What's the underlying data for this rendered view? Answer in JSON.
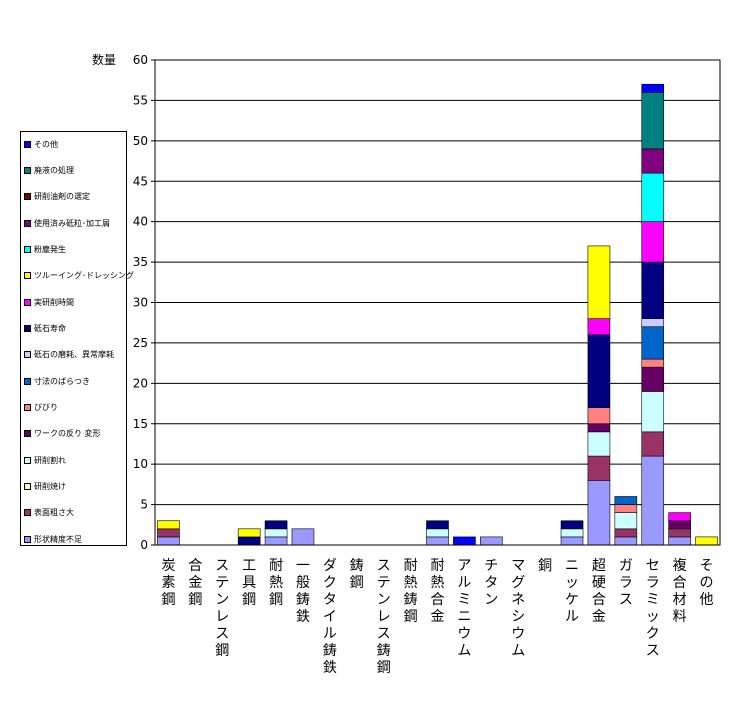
{
  "chart_data": {
    "type": "bar",
    "stacked": true,
    "ylabel": "数量",
    "ylim": [
      0,
      60
    ],
    "yticks": [
      0,
      5,
      10,
      15,
      20,
      25,
      30,
      35,
      40,
      45,
      50,
      55,
      60
    ],
    "grid": true,
    "legend_position": "left",
    "categories": [
      "炭素鋼",
      "合金鋼",
      "ステンレス鋼",
      "工具鋼",
      "耐熱鋼",
      "一般鋳鉄",
      "ダクタイル鋳鉄",
      "鋳鋼",
      "ステンレス鋳鋼",
      "耐熱鋳鋼",
      "耐熱合金",
      "アルミニウム",
      "チタン",
      "マグネシウム",
      "銅",
      "ニッケル",
      "超硬合金",
      "ガラス",
      "セラミックス",
      "複合材料",
      "その他"
    ],
    "series": [
      {
        "name": "形状精度不足",
        "color": "#9999ff",
        "values": [
          1,
          0,
          0,
          0,
          1,
          2,
          0,
          0,
          0,
          0,
          1,
          0,
          1,
          0,
          0,
          1,
          8,
          1,
          11,
          1,
          0
        ]
      },
      {
        "name": "表面粗さ大",
        "color": "#993366",
        "values": [
          1,
          0,
          0,
          0,
          0,
          0,
          0,
          0,
          0,
          0,
          0,
          0,
          0,
          0,
          0,
          0,
          3,
          1,
          3,
          1,
          0
        ]
      },
      {
        "name": "研削焼け",
        "color": "#ffffcc",
        "values": [
          0,
          0,
          0,
          0,
          0,
          0,
          0,
          0,
          0,
          0,
          0,
          0,
          0,
          0,
          0,
          0,
          0,
          0,
          0,
          0,
          0
        ]
      },
      {
        "name": "研削割れ",
        "color": "#ccffff",
        "values": [
          0,
          0,
          0,
          0,
          1,
          0,
          0,
          0,
          0,
          0,
          1,
          0,
          0,
          0,
          0,
          1,
          3,
          2,
          5,
          0,
          0
        ]
      },
      {
        "name": "ワークの反り 変形",
        "color": "#660066",
        "values": [
          0,
          0,
          0,
          0,
          0,
          0,
          0,
          0,
          0,
          0,
          0,
          0,
          0,
          0,
          0,
          0,
          1,
          0,
          3,
          1,
          0
        ]
      },
      {
        "name": "びびり",
        "color": "#ff8080",
        "values": [
          0,
          0,
          0,
          0,
          0,
          0,
          0,
          0,
          0,
          0,
          0,
          0,
          0,
          0,
          0,
          0,
          2,
          1,
          1,
          0,
          0
        ]
      },
      {
        "name": "寸法のばらつき",
        "color": "#0066cc",
        "values": [
          0,
          0,
          0,
          0,
          0,
          0,
          0,
          0,
          0,
          0,
          0,
          0,
          0,
          0,
          0,
          0,
          0,
          1,
          4,
          0,
          0
        ]
      },
      {
        "name": "砥石の磨耗、異常摩耗",
        "color": "#ccccff",
        "values": [
          0,
          0,
          0,
          0,
          0,
          0,
          0,
          0,
          0,
          0,
          0,
          0,
          0,
          0,
          0,
          0,
          0,
          0,
          1,
          0,
          0
        ]
      },
      {
        "name": "砥石寿命",
        "color": "#000080",
        "values": [
          0,
          0,
          0,
          1,
          1,
          0,
          0,
          0,
          0,
          0,
          1,
          0,
          0,
          0,
          0,
          1,
          9,
          0,
          7,
          0,
          0
        ]
      },
      {
        "name": "実研削時間",
        "color": "#ff00ff",
        "values": [
          0,
          0,
          0,
          0,
          0,
          0,
          0,
          0,
          0,
          0,
          0,
          0,
          0,
          0,
          0,
          0,
          2,
          0,
          5,
          1,
          0
        ]
      },
      {
        "name": "ツルーイング･ドレッシング",
        "color": "#ffff00",
        "values": [
          1,
          0,
          0,
          1,
          0,
          0,
          0,
          0,
          0,
          0,
          0,
          0,
          0,
          0,
          0,
          0,
          9,
          0,
          0,
          0,
          1
        ]
      },
      {
        "name": "粉塵発生",
        "color": "#00ffff",
        "values": [
          0,
          0,
          0,
          0,
          0,
          0,
          0,
          0,
          0,
          0,
          0,
          0,
          0,
          0,
          0,
          0,
          0,
          0,
          6,
          0,
          0
        ]
      },
      {
        "name": "使用済み砥粒･加工屑",
        "color": "#800080",
        "values": [
          0,
          0,
          0,
          0,
          0,
          0,
          0,
          0,
          0,
          0,
          0,
          0,
          0,
          0,
          0,
          0,
          0,
          0,
          3,
          0,
          0
        ]
      },
      {
        "name": "研削油剤の選定",
        "color": "#800000",
        "values": [
          0,
          0,
          0,
          0,
          0,
          0,
          0,
          0,
          0,
          0,
          0,
          0,
          0,
          0,
          0,
          0,
          0,
          0,
          0,
          0,
          0
        ]
      },
      {
        "name": "廃液の処理",
        "color": "#008080",
        "values": [
          0,
          0,
          0,
          0,
          0,
          0,
          0,
          0,
          0,
          0,
          0,
          0,
          0,
          0,
          0,
          0,
          0,
          0,
          7,
          0,
          0
        ]
      },
      {
        "name": "その他",
        "color": "#0000ff",
        "values": [
          0,
          0,
          0,
          0,
          0,
          0,
          0,
          0,
          0,
          0,
          0,
          1,
          0,
          0,
          0,
          0,
          0,
          0,
          1,
          0,
          0
        ]
      }
    ]
  }
}
